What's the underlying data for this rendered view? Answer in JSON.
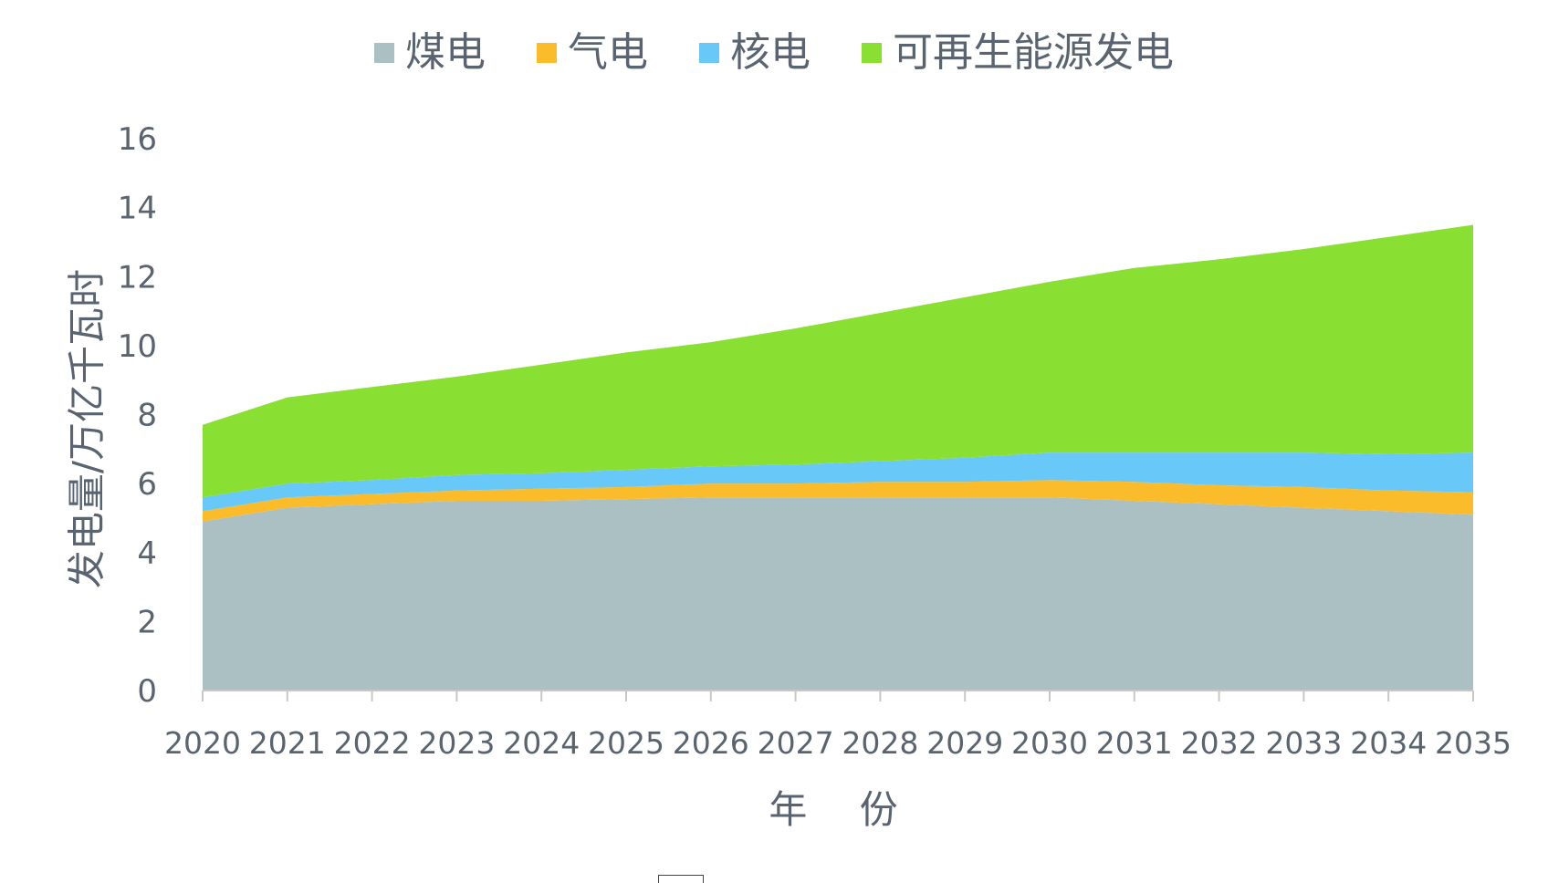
{
  "chart_data": {
    "type": "area",
    "stacked": true,
    "title": "",
    "xlabel": "年 份",
    "ylabel": "发电量/万亿千瓦时",
    "ylim": [
      0,
      16
    ],
    "yticks": [
      0,
      2,
      4,
      6,
      8,
      10,
      12,
      14,
      16
    ],
    "x": [
      "2020",
      "2021",
      "2022",
      "2023",
      "2024",
      "2025",
      "2026",
      "2027",
      "2028",
      "2029",
      "2030",
      "2031",
      "2032",
      "2033",
      "2034",
      "2035"
    ],
    "legend_position": "top-center",
    "grid": false,
    "series": [
      {
        "name": "煤电",
        "color": "#abc0c3",
        "values": [
          4.9,
          5.3,
          5.4,
          5.5,
          5.5,
          5.55,
          5.6,
          5.6,
          5.6,
          5.6,
          5.6,
          5.5,
          5.4,
          5.3,
          5.2,
          5.1
        ]
      },
      {
        "name": "气电",
        "color": "#fbbc2b",
        "values": [
          0.3,
          0.3,
          0.3,
          0.3,
          0.35,
          0.35,
          0.4,
          0.4,
          0.45,
          0.45,
          0.5,
          0.55,
          0.55,
          0.6,
          0.6,
          0.65
        ]
      },
      {
        "name": "核电",
        "color": "#68c8f7",
        "values": [
          0.4,
          0.4,
          0.4,
          0.45,
          0.45,
          0.5,
          0.5,
          0.55,
          0.6,
          0.7,
          0.8,
          0.85,
          0.95,
          1.0,
          1.05,
          1.15
        ]
      },
      {
        "name": "可再生能源发电",
        "color": "#8ae032",
        "values": [
          2.1,
          2.5,
          2.7,
          2.85,
          3.15,
          3.4,
          3.6,
          3.95,
          4.3,
          4.65,
          4.95,
          5.35,
          5.6,
          5.9,
          6.3,
          6.6
        ]
      }
    ]
  }
}
